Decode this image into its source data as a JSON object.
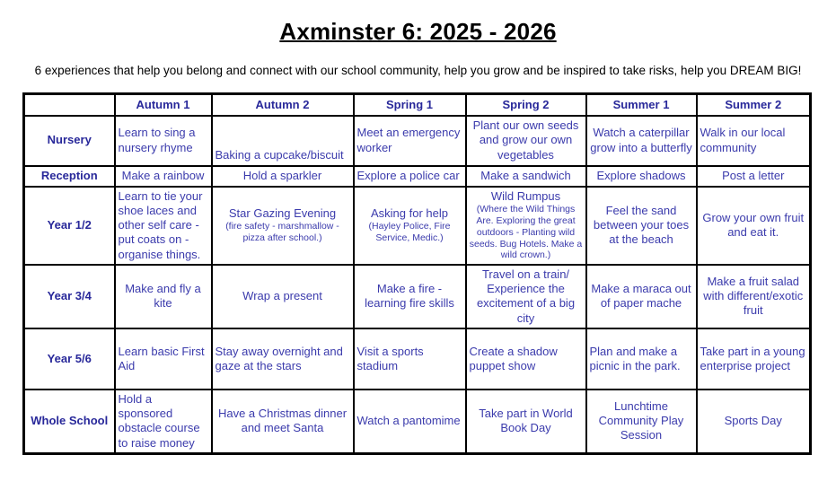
{
  "page": {
    "title": "Axminster 6: 2025 - 2026",
    "subtitle": "6 experiences that help you belong and connect with our school community, help you grow and be inspired to take risks, help you DREAM BIG!"
  },
  "colors": {
    "body_text": "#3b3bac",
    "header_text": "#28289a",
    "title_text": "#000000",
    "border": "#000000",
    "background": "#ffffff"
  },
  "table": {
    "column_headers": [
      "",
      "Autumn 1",
      "Autumn 2",
      "Spring 1",
      "Spring 2",
      "Summer 1",
      "Summer 2"
    ],
    "rows": [
      {
        "label": "Nursery",
        "cells": [
          {
            "main": "Learn to sing a nursery rhyme"
          },
          {
            "main": "Baking a cupcake/biscuit"
          },
          {
            "main": "Meet an emergency worker"
          },
          {
            "main": "Plant our own seeds and grow our own vegetables"
          },
          {
            "main": "Watch a caterpillar grow into a butterfly"
          },
          {
            "main": "Walk in our local community"
          }
        ]
      },
      {
        "label": "Reception",
        "cells": [
          {
            "main": "Make a rainbow"
          },
          {
            "main": "Hold a sparkler"
          },
          {
            "main": "Explore a police car"
          },
          {
            "main": "Make a sandwich"
          },
          {
            "main": "Explore shadows"
          },
          {
            "main": "Post a letter"
          }
        ]
      },
      {
        "label": "Year 1/2",
        "cells": [
          {
            "main": "Learn to tie your shoe laces and other self care - put coats on - organise things."
          },
          {
            "main": "Star Gazing Evening",
            "sub": "(fire safety - marshmallow - pizza after school.)"
          },
          {
            "main": "Asking for help",
            "sub": "(Hayley Police, Fire Service, Medic.)"
          },
          {
            "main": "Wild Rumpus",
            "sub": "(Where the Wild Things Are. Exploring the great outdoors - Planting wild seeds. Bug Hotels. Make a wild crown.)"
          },
          {
            "main": "Feel the sand between your toes at the beach"
          },
          {
            "main": "Grow your own fruit and eat it."
          }
        ]
      },
      {
        "label": "Year 3/4",
        "cells": [
          {
            "main": "Make and fly a kite"
          },
          {
            "main": "Wrap a present"
          },
          {
            "main": "Make a fire - learning fire skills"
          },
          {
            "main": "Travel on a train/ Experience the excitement of a big city"
          },
          {
            "main": "Make a maraca out of paper mache"
          },
          {
            "main": "Make a fruit salad with different/exotic fruit"
          }
        ]
      },
      {
        "label": "Year 5/6",
        "cells": [
          {
            "main": "Learn basic First Aid"
          },
          {
            "main": "Stay away overnight and gaze at the stars"
          },
          {
            "main": "Visit a sports stadium"
          },
          {
            "main": "Create a shadow puppet show"
          },
          {
            "main": "Plan and make a picnic in the park."
          },
          {
            "main": "Take part in a young enterprise project"
          }
        ]
      },
      {
        "label": "Whole School",
        "cells": [
          {
            "main": "Hold a sponsored obstacle course to raise money"
          },
          {
            "main": "Have a Christmas dinner and meet Santa"
          },
          {
            "main": "Watch a pantomime"
          },
          {
            "main": "Take part in World Book Day"
          },
          {
            "main": "Lunchtime Community Play Session"
          },
          {
            "main": "Sports Day"
          }
        ]
      }
    ]
  }
}
